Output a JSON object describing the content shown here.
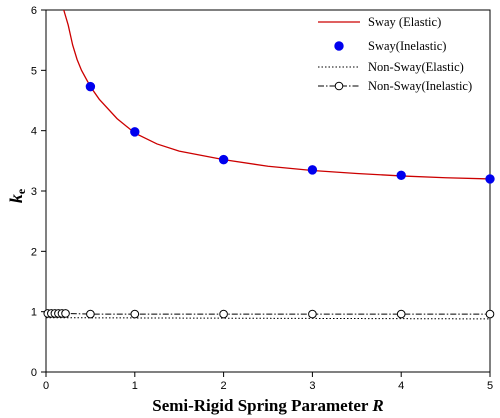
{
  "chart_data": {
    "type": "line",
    "xlabel": "Semi-Rigid Spring Parameter ",
    "xlabel_var": "R",
    "ylabel": "k",
    "ylabel_sub": "e",
    "xlim": [
      0,
      5
    ],
    "ylim": [
      0,
      6
    ],
    "x_ticks": [
      0,
      1,
      2,
      3,
      4,
      5
    ],
    "y_ticks": [
      0,
      1,
      2,
      3,
      4,
      5,
      6
    ],
    "grid": false,
    "legend_position": "top-right",
    "series": [
      {
        "name": "Sway (Elastic)",
        "style": "solid-line",
        "color": "#cc0000",
        "x": [
          0.2,
          0.25,
          0.3,
          0.35,
          0.4,
          0.5,
          0.6,
          0.8,
          1.0,
          1.25,
          1.5,
          2.0,
          2.5,
          3.0,
          3.5,
          4.0,
          4.5,
          5.0
        ],
        "y": [
          6.0,
          5.75,
          5.42,
          5.18,
          5.0,
          4.73,
          4.52,
          4.2,
          3.96,
          3.78,
          3.66,
          3.52,
          3.41,
          3.34,
          3.29,
          3.25,
          3.22,
          3.2
        ]
      },
      {
        "name": "Sway(Inelastic)",
        "style": "filled-marker",
        "color": "#0000ee",
        "x": [
          0.5,
          1,
          2,
          3,
          4,
          5
        ],
        "y": [
          4.73,
          3.98,
          3.52,
          3.35,
          3.26,
          3.2
        ]
      },
      {
        "name": "Non-Sway(Elastic)",
        "style": "dotted-line",
        "color": "#000000",
        "x": [
          0,
          5
        ],
        "y": [
          0.9,
          0.88
        ]
      },
      {
        "name": "Non-Sway(Inelastic)",
        "style": "open-marker-dashdot",
        "color": "#000000",
        "x": [
          0.02,
          0.06,
          0.1,
          0.14,
          0.18,
          0.22,
          0.5,
          1,
          2,
          3,
          4,
          5
        ],
        "y": [
          0.97,
          0.97,
          0.97,
          0.97,
          0.97,
          0.97,
          0.96,
          0.96,
          0.96,
          0.96,
          0.96,
          0.96
        ]
      }
    ]
  }
}
